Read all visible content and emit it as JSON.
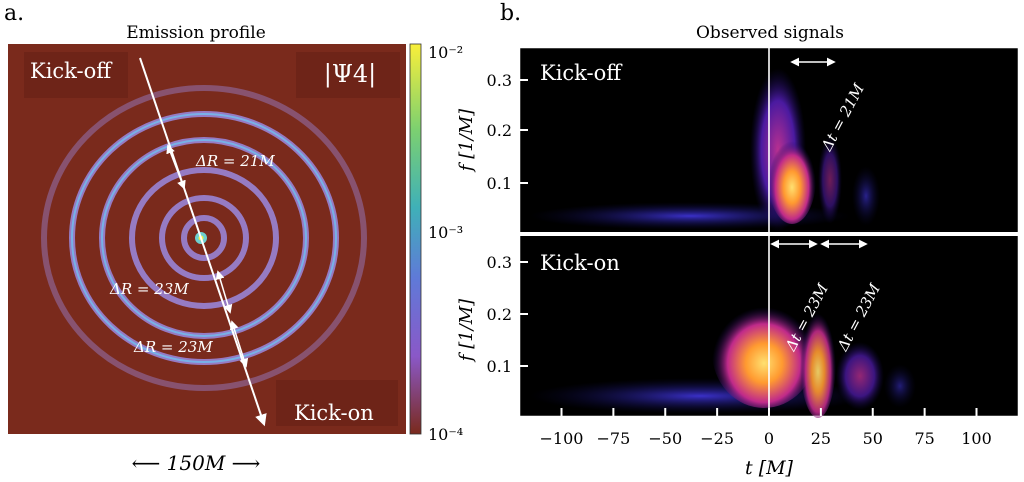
{
  "panels": {
    "a": {
      "letter": "a.",
      "title": "Emission profile",
      "colorbar_label": "|Ψ4|",
      "colorbar_ticks": [
        "10⁻²",
        "10⁻³",
        "10⁻⁴"
      ],
      "label_top": "Kick-off",
      "label_bottom": "Kick-on",
      "annotations": [
        "ΔR = 21M",
        "ΔR = 23M",
        "ΔR = 23M"
      ],
      "scale_label": "⟵  150M  ⟶",
      "colors": {
        "background": "#7a2a1c",
        "ring": "#9c86d8",
        "ring_core": "#6fb0e8"
      }
    },
    "b": {
      "letter": "b.",
      "title": "Observed signals",
      "top_label": "Kick-off",
      "bottom_label": "Kick-on",
      "ylabel": "f [1/M]",
      "xlabel": "t [M]",
      "top_annotations": [
        "Δt = 21M"
      ],
      "bottom_annotations": [
        "Δt = 23M",
        "Δt = 23M"
      ],
      "yticks": [
        "0.3",
        "0.2",
        "0.1"
      ],
      "colors": {
        "background": "#000000",
        "hot": "#ffb040",
        "mid": "#c0307a",
        "cool": "#2a2ac0"
      }
    }
  },
  "chart_data": {
    "type": "heatmap",
    "x": [
      -100,
      -75,
      -50,
      -25,
      0,
      25,
      50,
      75,
      100
    ],
    "xlim": [
      -120,
      120
    ],
    "ylim": [
      0.02,
      0.35
    ],
    "xlabel": "t[M]",
    "ylabel": "f[1/M]",
    "subplots": [
      {
        "label": "Kick-off",
        "peaks": [
          {
            "t": 10,
            "f": 0.1
          }
        ],
        "annotation": "Δt = 21M"
      },
      {
        "label": "Kick-on",
        "peaks": [
          {
            "t": 0,
            "f": 0.08
          },
          {
            "t": 23,
            "f": 0.1
          }
        ],
        "annotations": [
          "Δt = 23M",
          "Δt = 23M"
        ]
      }
    ]
  }
}
